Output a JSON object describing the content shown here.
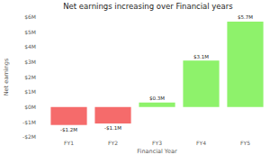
{
  "chart_data": {
    "type": "bar",
    "title": "Net earnings increasing over Financial years",
    "x_label": "Financial Year",
    "y_label": "Net earnings",
    "categories": [
      "FY1",
      "FY2",
      "FY3",
      "FY4",
      "FY5"
    ],
    "values": [
      -1200000,
      -1100000,
      300000,
      3100000,
      5700000
    ],
    "value_labels": [
      "-$1.2M",
      "-$1.1M",
      "$0.3M",
      "$3.1M",
      "$5.7M"
    ],
    "colors": [
      "#f56b6b",
      "#f56b6b",
      "#8ef26b",
      "#8ef26b",
      "#8ef26b"
    ],
    "ylim": [
      -2000000,
      6000000
    ],
    "yticks": [
      {
        "value": -2000000,
        "label": "-$2M"
      },
      {
        "value": -1000000,
        "label": "-$1M"
      },
      {
        "value": 0,
        "label": "$0M"
      },
      {
        "value": 1000000,
        "label": "$1M"
      },
      {
        "value": 2000000,
        "label": "$2M"
      },
      {
        "value": 3000000,
        "label": "$3M"
      },
      {
        "value": 4000000,
        "label": "$4M"
      },
      {
        "value": 5000000,
        "label": "$5M"
      },
      {
        "value": 6000000,
        "label": "$6M"
      }
    ],
    "grid": false,
    "data_labels": true
  }
}
